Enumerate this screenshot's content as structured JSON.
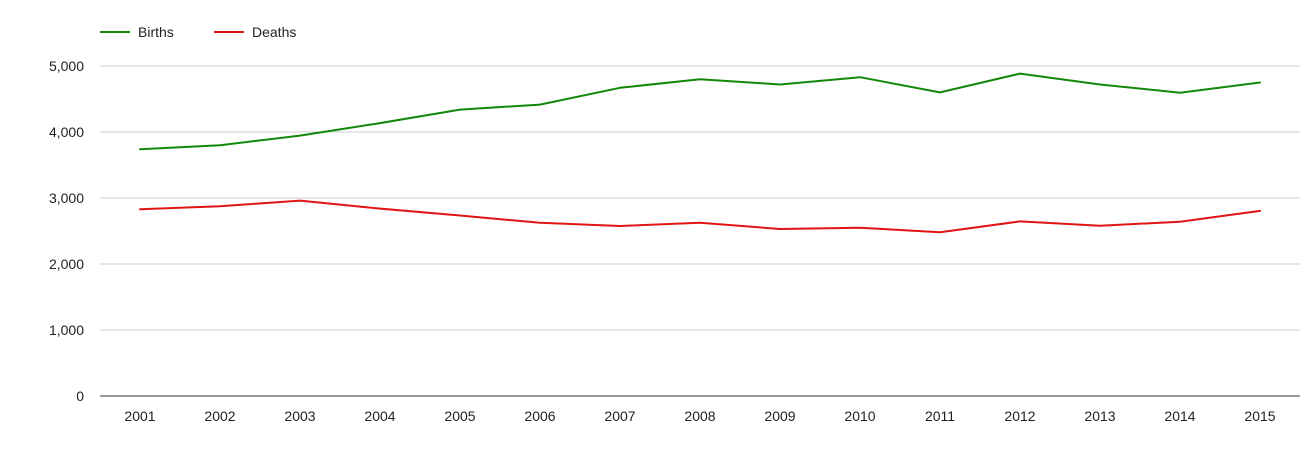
{
  "chart_data": {
    "type": "line",
    "title": "",
    "xlabel": "",
    "ylabel": "",
    "categories": [
      "2001",
      "2002",
      "2003",
      "2004",
      "2005",
      "2006",
      "2007",
      "2008",
      "2009",
      "2010",
      "2011",
      "2012",
      "2013",
      "2014",
      "2015"
    ],
    "series": [
      {
        "name": "Births",
        "color": "#138808",
        "values": [
          3740,
          3800,
          3945,
          4135,
          4340,
          4415,
          4670,
          4800,
          4720,
          4830,
          4600,
          4885,
          4720,
          4595,
          4750
        ]
      },
      {
        "name": "Deaths",
        "color": "#e01515",
        "values": [
          2830,
          2875,
          2960,
          2840,
          2735,
          2625,
          2575,
          2625,
          2530,
          2550,
          2480,
          2645,
          2580,
          2640,
          2805
        ]
      }
    ],
    "ylim": [
      0,
      5000
    ],
    "yticks": [
      0,
      1000,
      2000,
      3000,
      4000,
      5000
    ],
    "ytick_labels": [
      "0",
      "1,000",
      "2,000",
      "3,000",
      "4,000",
      "5,000"
    ],
    "grid": true,
    "legend": "top-left"
  }
}
